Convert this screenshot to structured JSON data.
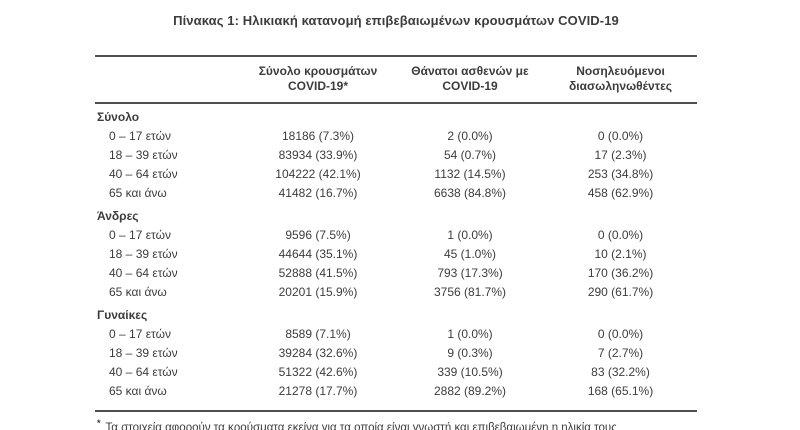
{
  "title": "Πίνακας 1: Ηλικιακή κατανομή επιβεβαιωμένων κρουσμάτων COVID-19",
  "colors": {
    "text": "#3c3c3c",
    "rule_line": "#4f4f4f",
    "background": "#ffffff"
  },
  "table": {
    "columns": [
      {
        "line1": "",
        "line2": ""
      },
      {
        "line1": "Σύνολο κρουσμάτων",
        "line2": "COVID-19*"
      },
      {
        "line1": "Θάνατοι ασθενών με",
        "line2": "COVID-19"
      },
      {
        "line1": "Νοσηλευόμενοι",
        "line2": "διασωληνωθέντες"
      }
    ],
    "sections": [
      {
        "label": "Σύνολο",
        "rows": [
          {
            "age": "0 – 17 ετών",
            "cases": "18186 (7.3%)",
            "deaths": "2 (0.0%)",
            "intubated": "0 (0.0%)"
          },
          {
            "age": "18 – 39 ετών",
            "cases": "83934 (33.9%)",
            "deaths": "54 (0.7%)",
            "intubated": "17 (2.3%)"
          },
          {
            "age": "40 – 64 ετών",
            "cases": "104222 (42.1%)",
            "deaths": "1132 (14.5%)",
            "intubated": "253 (34.8%)"
          },
          {
            "age": "65 και άνω",
            "cases": "41482 (16.7%)",
            "deaths": "6638 (84.8%)",
            "intubated": "458 (62.9%)"
          }
        ]
      },
      {
        "label": "Άνδρες",
        "rows": [
          {
            "age": "0 – 17 ετών",
            "cases": "9596 (7.5%)",
            "deaths": "1 (0.0%)",
            "intubated": "0 (0.0%)"
          },
          {
            "age": "18 – 39 ετών",
            "cases": "44644 (35.1%)",
            "deaths": "45 (1.0%)",
            "intubated": "10 (2.1%)"
          },
          {
            "age": "40 – 64 ετών",
            "cases": "52888 (41.5%)",
            "deaths": "793 (17.3%)",
            "intubated": "170 (36.2%)"
          },
          {
            "age": "65 και άνω",
            "cases": "20201 (15.9%)",
            "deaths": "3756 (81.7%)",
            "intubated": "290 (61.7%)"
          }
        ]
      },
      {
        "label": "Γυναίκες",
        "rows": [
          {
            "age": "0 – 17 ετών",
            "cases": "8589 (7.1%)",
            "deaths": "1 (0.0%)",
            "intubated": "0 (0.0%)"
          },
          {
            "age": "18 – 39 ετών",
            "cases": "39284 (32.6%)",
            "deaths": "9 (0.3%)",
            "intubated": "7 (2.7%)"
          },
          {
            "age": "40 – 64 ετών",
            "cases": "51322 (42.6%)",
            "deaths": "339 (10.5%)",
            "intubated": "83 (32.2%)"
          },
          {
            "age": "65 και άνω",
            "cases": "21278 (17.7%)",
            "deaths": "2882 (89.2%)",
            "intubated": "168 (65.1%)"
          }
        ]
      }
    ]
  },
  "footnote": {
    "marker": "*",
    "text": "Τα στοιχεία αφορούν τα κρούσματα εκείνα για τα οποία είναι γνωστή και επιβεβαιωμένη η ηλικία τους"
  }
}
